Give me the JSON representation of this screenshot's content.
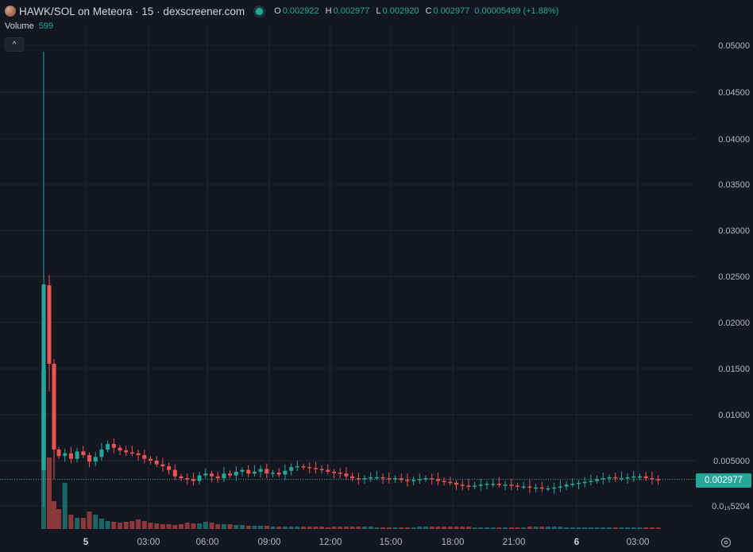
{
  "header": {
    "title": "HAWK/SOL on Meteora · 15 · dexscreener.com",
    "ohlc": [
      {
        "key": "O",
        "value": "0.002922"
      },
      {
        "key": "H",
        "value": "0.002977"
      },
      {
        "key": "L",
        "value": "0.002920"
      },
      {
        "key": "C",
        "value": "0.002977"
      }
    ],
    "change": "0.00005499 (+1.88%)"
  },
  "volume_legend": {
    "label": "Volume",
    "value": "599"
  },
  "price_tag": "0.002977",
  "colors": {
    "up": "#26a69a",
    "down": "#ef5350",
    "background": "#131722",
    "grid": "#1f2430"
  },
  "icons": {
    "collapse": "chevron-up-icon",
    "settings": "settings-icon"
  },
  "chart_data": {
    "type": "candlestick",
    "y_ticks": [
      "0.05000",
      "0.04500",
      "0.04000",
      "0.03500",
      "0.03000",
      "0.02500",
      "0.02000",
      "0.01500",
      "0.01000",
      "0.005000",
      "0.0₁₅5204"
    ],
    "x_ticks": [
      "5",
      "03:00",
      "06:00",
      "09:00",
      "12:00",
      "15:00",
      "18:00",
      "21:00",
      "6",
      "03:00"
    ],
    "last_price": 0.002977,
    "ylim": [
      0,
      0.05
    ]
  }
}
